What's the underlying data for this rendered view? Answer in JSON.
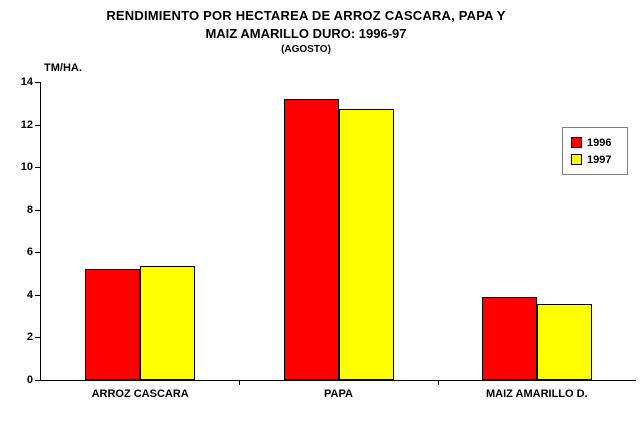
{
  "chart_data": {
    "type": "bar",
    "title_line1": "RENDIMIENTO POR HECTAREA DE ARROZ CASCARA, PAPA Y",
    "title_line2": "MAIZ AMARILLO DURO: 1996-97",
    "subtitle": "(AGOSTO)",
    "ylabel": "TM/HA.",
    "xlabel": "",
    "categories": [
      "ARROZ CASCARA",
      "PAPA",
      "MAIZ AMARILLO D."
    ],
    "series": [
      {
        "name": "1996",
        "color": "#FF0000",
        "values": [
          5.2,
          13.2,
          3.9
        ]
      },
      {
        "name": "1997",
        "color": "#FFFF00",
        "values": [
          5.35,
          12.75,
          3.55
        ]
      }
    ],
    "ylim": [
      0,
      14
    ],
    "yticks": [
      0,
      2,
      4,
      6,
      8,
      10,
      12,
      14
    ],
    "grid": false,
    "legend_position": "right",
    "bar_border_color": "#000000",
    "axis_color": "#000000",
    "background_color": "#FFFFFF"
  }
}
